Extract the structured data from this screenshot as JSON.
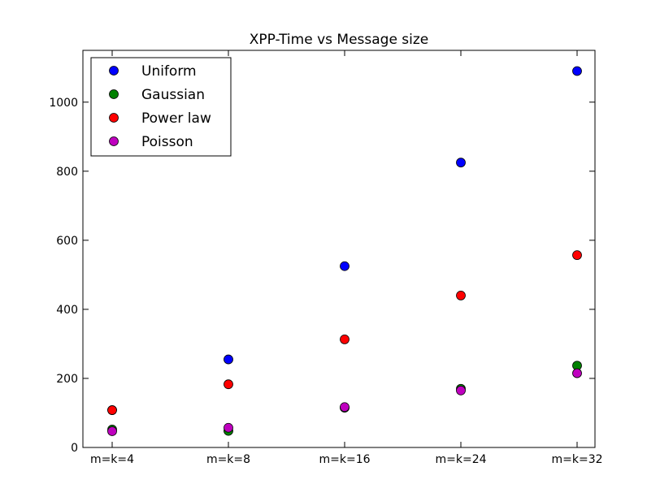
{
  "chart_data": {
    "type": "scatter",
    "title": "XPP-Time vs Message size",
    "xlabel": "",
    "ylabel": "",
    "categories": [
      "m=k=4",
      "m=k=8",
      "m=k=16",
      "m=k=24",
      "m=k=32"
    ],
    "ylim": [
      0,
      1150
    ],
    "yticks": [
      0,
      200,
      400,
      600,
      800,
      1000
    ],
    "grid": false,
    "legend_position": "top-left",
    "series": [
      {
        "name": "Uniform",
        "color": "#0000ff",
        "values": [
          108,
          255,
          525,
          825,
          1090
        ]
      },
      {
        "name": "Gaussian",
        "color": "#008000",
        "values": [
          52,
          48,
          115,
          170,
          237
        ]
      },
      {
        "name": "Power law",
        "color": "#ff0000",
        "values": [
          108,
          183,
          313,
          440,
          557
        ]
      },
      {
        "name": "Poisson",
        "color": "#bf00bf",
        "values": [
          47,
          57,
          117,
          165,
          215
        ]
      }
    ]
  }
}
